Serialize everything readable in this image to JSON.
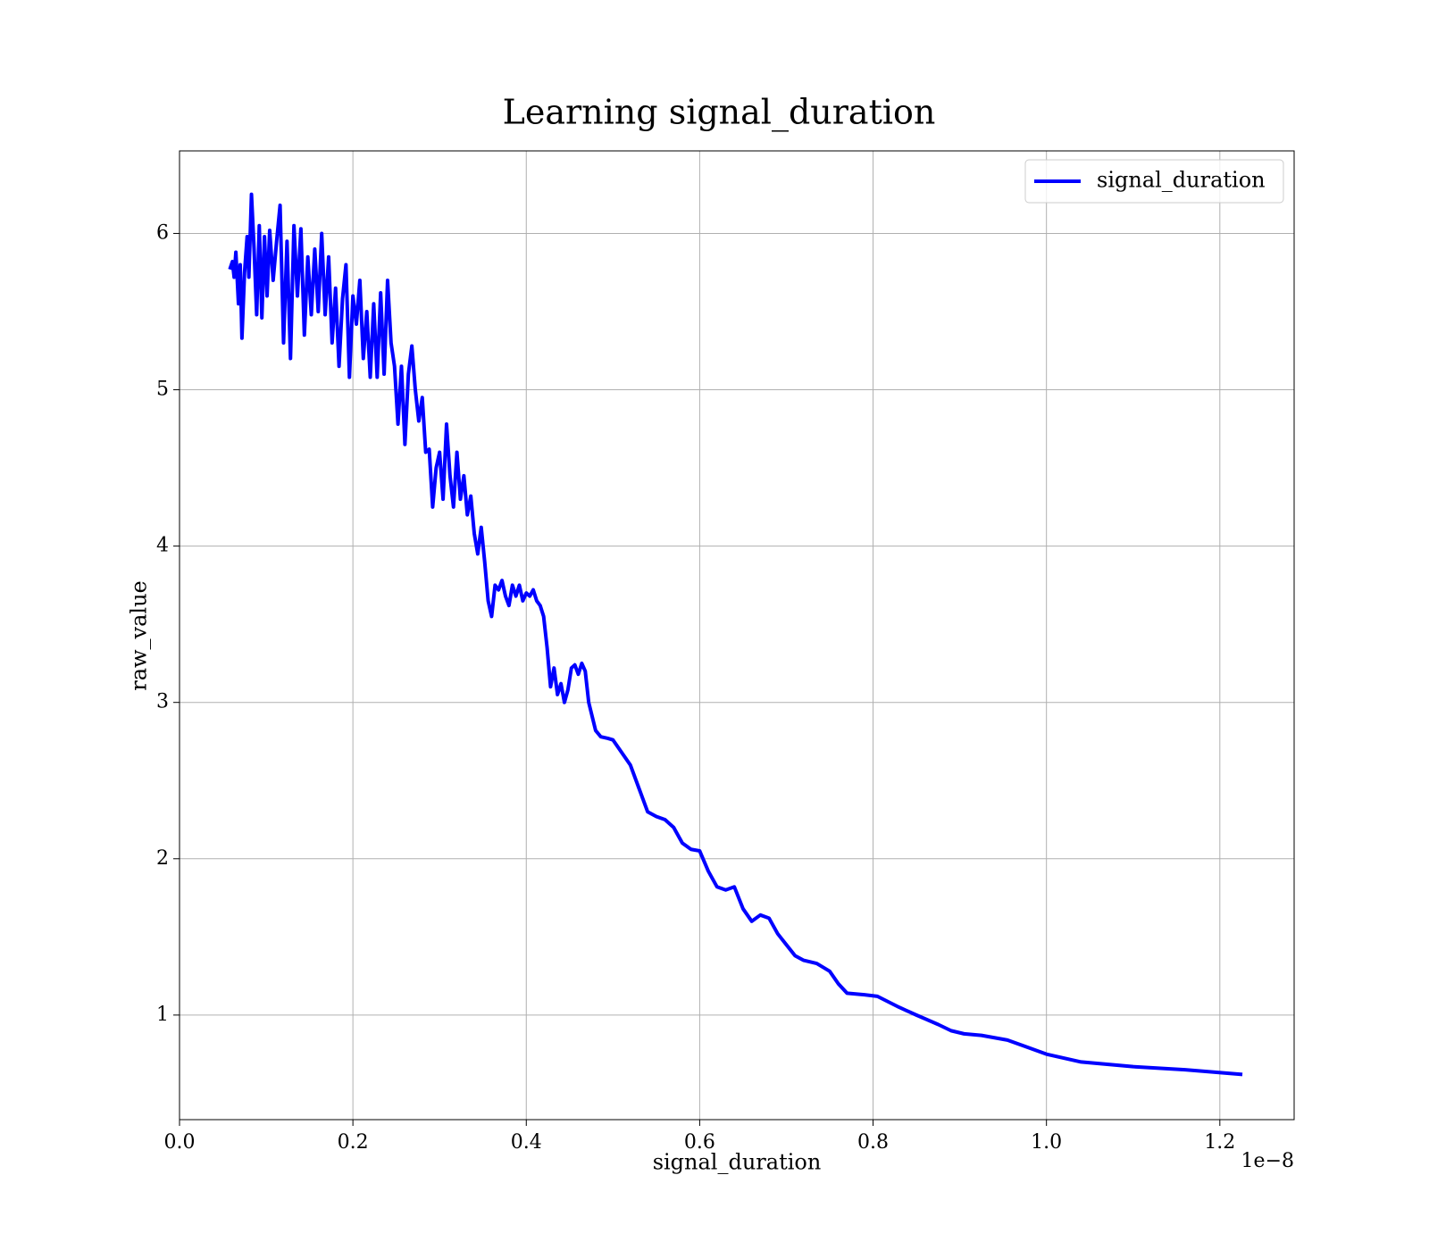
{
  "chart_data": {
    "type": "line",
    "title": "Learning signal_duration",
    "xlabel": "signal_duration",
    "ylabel": "raw_value",
    "x_offset_label": "1e−8",
    "x": [
      5.8e-10,
      6.1e-10,
      6.3e-10,
      6.5e-10,
      6.8e-10,
      7e-10,
      7.2e-10,
      7.5e-10,
      7.8e-10,
      8e-10,
      8.3e-10,
      8.6e-10,
      8.9e-10,
      9.2e-10,
      9.5e-10,
      9.8e-10,
      1.01e-09,
      1.04e-09,
      1.08e-09,
      1.12e-09,
      1.16e-09,
      1.2e-09,
      1.24e-09,
      1.28e-09,
      1.32e-09,
      1.36e-09,
      1.4e-09,
      1.44e-09,
      1.48e-09,
      1.52e-09,
      1.56e-09,
      1.6e-09,
      1.64e-09,
      1.68e-09,
      1.72e-09,
      1.76e-09,
      1.8e-09,
      1.84e-09,
      1.88e-09,
      1.92e-09,
      1.96e-09,
      2e-09,
      2.04e-09,
      2.08e-09,
      2.12e-09,
      2.16e-09,
      2.2e-09,
      2.24e-09,
      2.28e-09,
      2.32e-09,
      2.36e-09,
      2.4e-09,
      2.44e-09,
      2.48e-09,
      2.52e-09,
      2.56e-09,
      2.6e-09,
      2.64e-09,
      2.68e-09,
      2.72e-09,
      2.76e-09,
      2.8e-09,
      2.84e-09,
      2.88e-09,
      2.92e-09,
      2.96e-09,
      3e-09,
      3.04e-09,
      3.08e-09,
      3.12e-09,
      3.16e-09,
      3.2e-09,
      3.24e-09,
      3.28e-09,
      3.32e-09,
      3.36e-09,
      3.4e-09,
      3.44e-09,
      3.48e-09,
      3.52e-09,
      3.56e-09,
      3.6e-09,
      3.64e-09,
      3.68e-09,
      3.72e-09,
      3.76e-09,
      3.8e-09,
      3.84e-09,
      3.88e-09,
      3.92e-09,
      3.96e-09,
      4e-09,
      4.04e-09,
      4.08e-09,
      4.12e-09,
      4.16e-09,
      4.2e-09,
      4.24e-09,
      4.28e-09,
      4.32e-09,
      4.36e-09,
      4.4e-09,
      4.44e-09,
      4.48e-09,
      4.52e-09,
      4.56e-09,
      4.6e-09,
      4.64e-09,
      4.68e-09,
      4.72e-09,
      4.8e-09,
      4.86e-09,
      4.94e-09,
      5e-09,
      5.1e-09,
      5.2e-09,
      5.3e-09,
      5.4e-09,
      5.5e-09,
      5.6e-09,
      5.7e-09,
      5.8e-09,
      5.9e-09,
      6e-09,
      6.1e-09,
      6.2e-09,
      6.3e-09,
      6.4e-09,
      6.5e-09,
      6.6e-09,
      6.7e-09,
      6.8e-09,
      6.9e-09,
      7e-09,
      7.1e-09,
      7.2e-09,
      7.35e-09,
      7.5e-09,
      7.6e-09,
      7.7e-09,
      7.9e-09,
      8.05e-09,
      8.3e-09,
      8.5e-09,
      8.75e-09,
      8.9e-09,
      9.05e-09,
      9.25e-09,
      9.55e-09,
      1e-08,
      1.04e-08,
      1.1e-08,
      1.16e-08,
      1.226e-08
    ],
    "series": [
      {
        "name": "signal_duration",
        "color": "#0000ff",
        "values": [
          5.77,
          5.82,
          5.72,
          5.88,
          5.55,
          5.8,
          5.33,
          5.75,
          5.98,
          5.72,
          6.25,
          5.9,
          5.48,
          6.05,
          5.46,
          5.98,
          5.6,
          6.02,
          5.7,
          5.95,
          6.18,
          5.3,
          5.95,
          5.2,
          6.05,
          5.6,
          6.03,
          5.35,
          5.85,
          5.48,
          5.9,
          5.5,
          6.0,
          5.48,
          5.85,
          5.3,
          5.65,
          5.15,
          5.58,
          5.8,
          5.08,
          5.6,
          5.42,
          5.7,
          5.2,
          5.5,
          5.08,
          5.55,
          5.08,
          5.62,
          5.1,
          5.7,
          5.3,
          5.15,
          4.78,
          5.15,
          4.65,
          5.1,
          5.28,
          5.0,
          4.8,
          4.95,
          4.6,
          4.62,
          4.25,
          4.5,
          4.6,
          4.3,
          4.78,
          4.45,
          4.25,
          4.6,
          4.3,
          4.45,
          4.2,
          4.32,
          4.08,
          3.95,
          4.12,
          3.9,
          3.65,
          3.55,
          3.75,
          3.72,
          3.78,
          3.68,
          3.62,
          3.75,
          3.68,
          3.75,
          3.65,
          3.7,
          3.68,
          3.72,
          3.65,
          3.62,
          3.55,
          3.35,
          3.1,
          3.22,
          3.05,
          3.12,
          3.0,
          3.08,
          3.22,
          3.24,
          3.18,
          3.25,
          3.2,
          3.0,
          2.82,
          2.78,
          2.77,
          2.76,
          2.68,
          2.6,
          2.45,
          2.3,
          2.27,
          2.25,
          2.2,
          2.1,
          2.06,
          2.05,
          1.92,
          1.82,
          1.8,
          1.82,
          1.68,
          1.6,
          1.64,
          1.62,
          1.52,
          1.45,
          1.38,
          1.35,
          1.33,
          1.28,
          1.2,
          1.14,
          1.13,
          1.12,
          1.05,
          1.0,
          0.94,
          0.9,
          0.88,
          0.87,
          0.84,
          0.75,
          0.7,
          0.67,
          0.65,
          0.62
        ]
      }
    ],
    "xlim": [
      0,
      1.2857e-08
    ],
    "ylim": [
      0.331,
      6.528
    ],
    "xticks": [
      {
        "value": 0,
        "label": "0.0"
      },
      {
        "value": 2e-09,
        "label": "0.2"
      },
      {
        "value": 4e-09,
        "label": "0.4"
      },
      {
        "value": 6e-09,
        "label": "0.6"
      },
      {
        "value": 8e-09,
        "label": "0.8"
      },
      {
        "value": 1e-08,
        "label": "1.0"
      },
      {
        "value": 1.2e-08,
        "label": "1.2"
      }
    ],
    "yticks": [
      1,
      2,
      3,
      4,
      5,
      6
    ],
    "grid": true,
    "legend": "upper right"
  }
}
